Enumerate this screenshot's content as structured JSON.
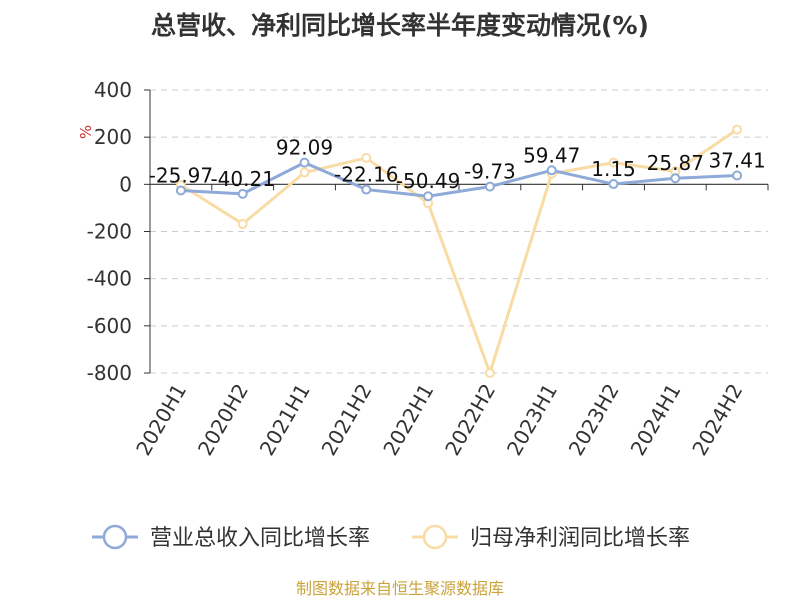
{
  "title": "总营收、净利同比增长率半年度变动情况(%)",
  "source": "制图数据来自恒生聚源数据库",
  "colors": {
    "revenue": "#8eaad8",
    "profit": "#f9dca5",
    "unit": "#cc3333",
    "source": "#c9a33b",
    "grid": "#cccccc",
    "axis": "#333333"
  },
  "chart_data": {
    "type": "line",
    "title": "总营收、净利同比增长率半年度变动情况(%)",
    "ylabel": "%",
    "ylim": [
      -800,
      400
    ],
    "yticks": [
      400,
      200,
      0,
      -200,
      -400,
      -600,
      -800
    ],
    "grid": true,
    "legend_position": "bottom",
    "categories": [
      "2020H1",
      "2020H2",
      "2021H1",
      "2021H2",
      "2022H1",
      "2022H2",
      "2023H1",
      "2023H2",
      "2024H1",
      "2024H2"
    ],
    "series": [
      {
        "name": "营业总收入同比增长率",
        "values": [
          -25.97,
          -40.21,
          92.09,
          -22.16,
          -50.49,
          -9.73,
          59.47,
          1.15,
          25.87,
          37.41
        ],
        "labels": [
          "-25.97",
          "-40.21",
          "92.09",
          "-22.16",
          "-50.49",
          "-9.73",
          "59.47",
          "1.15",
          "25.87",
          "37.41"
        ]
      },
      {
        "name": "归母净利润同比增长率",
        "values": [
          -3,
          -168,
          50,
          112,
          -80,
          -800,
          45,
          92,
          55,
          232
        ]
      }
    ]
  }
}
